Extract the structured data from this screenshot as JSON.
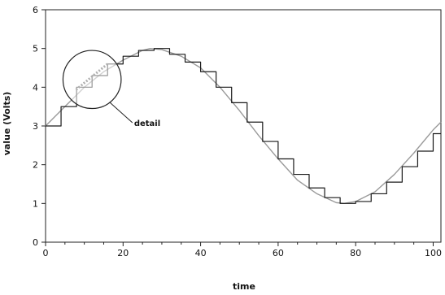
{
  "chart_data": {
    "type": "line",
    "title": "",
    "xlabel": "time",
    "ylabel": "value (Volts)",
    "xlim": [
      0,
      102
    ],
    "ylim": [
      0,
      6
    ],
    "xticks": [
      0,
      20,
      40,
      60,
      80,
      100
    ],
    "yticks": [
      0,
      1,
      2,
      3,
      4,
      5,
      6
    ],
    "xtick_labels": [
      "0",
      "20",
      "40",
      "60",
      "80",
      "100"
    ],
    "ytick_labels": [
      "0",
      "1",
      "2",
      "3",
      "4",
      "5",
      "6"
    ],
    "grid": false,
    "legend": "none",
    "series": [
      {
        "style": "smooth sine curve",
        "x": [
          0,
          5,
          10,
          15,
          20,
          25,
          27,
          30,
          35,
          40,
          45,
          50,
          55,
          60,
          65,
          70,
          75,
          77,
          80,
          85,
          90,
          95,
          100,
          102
        ],
        "y": [
          3.0,
          3.5,
          4.0,
          4.4,
          4.7,
          4.95,
          5.0,
          4.97,
          4.8,
          4.5,
          4.0,
          3.4,
          2.75,
          2.15,
          1.6,
          1.25,
          1.02,
          1.0,
          1.05,
          1.3,
          1.75,
          2.3,
          2.9,
          3.1
        ]
      },
      {
        "style": "stepped quantized approximation",
        "x": [
          0,
          4,
          4,
          8,
          8,
          12,
          12,
          16,
          16,
          20,
          20,
          24,
          24,
          28,
          28,
          32,
          32,
          36,
          36,
          40,
          40,
          44,
          44,
          48,
          48,
          52,
          52,
          56,
          56,
          60,
          60,
          64,
          64,
          68,
          68,
          72,
          72,
          76,
          76,
          80,
          80,
          84,
          84,
          88,
          88,
          92,
          92,
          96,
          96,
          100,
          100,
          102
        ],
        "y": [
          3.0,
          3.0,
          3.5,
          3.5,
          4.0,
          4.0,
          4.3,
          4.3,
          4.6,
          4.6,
          4.8,
          4.8,
          4.95,
          4.95,
          5.0,
          5.0,
          4.85,
          4.85,
          4.65,
          4.65,
          4.4,
          4.4,
          4.0,
          4.0,
          3.6,
          3.6,
          3.1,
          3.1,
          2.6,
          2.6,
          2.15,
          2.15,
          1.75,
          1.75,
          1.4,
          1.4,
          1.15,
          1.15,
          1.0,
          1.0,
          1.05,
          1.05,
          1.25,
          1.25,
          1.55,
          1.55,
          1.95,
          1.95,
          2.35,
          2.35,
          2.8,
          2.8
        ]
      }
    ],
    "annotations": [
      {
        "type": "circle",
        "x": 12,
        "y": 4.2,
        "radius_x_units": 7.5,
        "label": ""
      },
      {
        "type": "text",
        "x": 22,
        "y": 3.0,
        "label": "detail"
      }
    ]
  }
}
